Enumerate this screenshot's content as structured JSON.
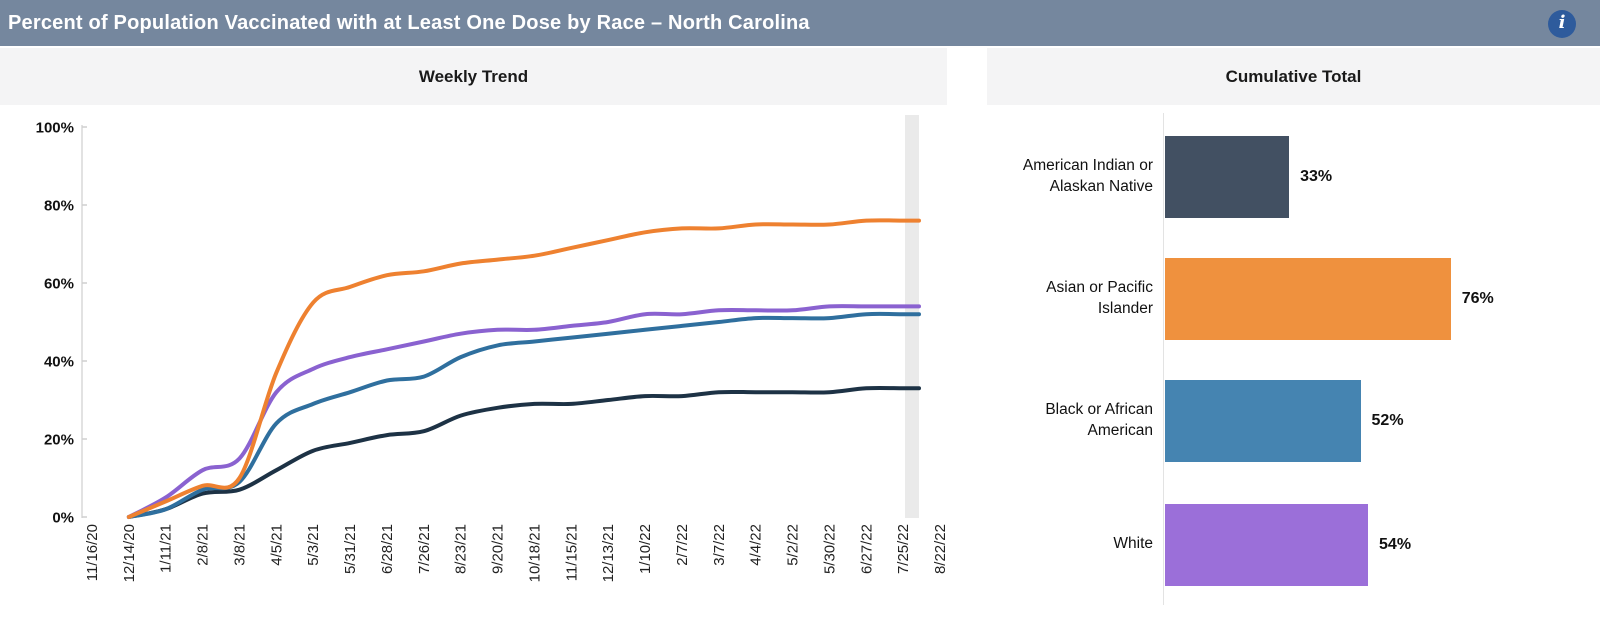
{
  "header": {
    "title": "Percent of Population Vaccinated with at Least One Dose by Race – North Carolina",
    "info_icon": "i"
  },
  "colors": {
    "header_bg": "#75879E",
    "info_icon_bg": "#2E5B9C",
    "panel_header_bg": "#F4F4F5",
    "highlight_band": "#EAEAEA",
    "axis_line": "#D8D8D8"
  },
  "panels": {
    "weekly_trend": {
      "title": "Weekly Trend"
    },
    "cumulative_total": {
      "title": "Cumulative Total"
    }
  },
  "chart_data": [
    {
      "type": "line",
      "title": "Weekly Trend",
      "x": [
        "11/16/20",
        "12/14/20",
        "1/11/21",
        "2/8/21",
        "3/8/21",
        "4/5/21",
        "5/3/21",
        "5/31/21",
        "6/28/21",
        "7/26/21",
        "8/23/21",
        "9/20/21",
        "10/18/21",
        "11/15/21",
        "12/13/21",
        "1/10/22",
        "2/7/22",
        "3/7/22",
        "4/4/22",
        "5/2/22",
        "5/30/22",
        "6/27/22",
        "7/25/22",
        "8/22/22"
      ],
      "y_ticks": [
        "0%",
        "20%",
        "40%",
        "60%",
        "80%",
        "100%"
      ],
      "ylim": [
        0,
        100
      ],
      "grid": false,
      "legend": "none",
      "highlight_band_on_latest_week": true,
      "series": [
        {
          "name": "American Indian or Alaskan Native",
          "color": "#1D3245",
          "values": [
            null,
            0,
            2,
            6,
            7,
            12,
            17,
            19,
            21,
            22,
            26,
            28,
            29,
            29,
            30,
            31,
            31,
            32,
            32,
            32,
            32,
            33,
            33,
            null
          ]
        },
        {
          "name": "Black or African American",
          "color": "#2F6F9E",
          "values": [
            null,
            0,
            2,
            7,
            9,
            24,
            29,
            32,
            35,
            36,
            41,
            44,
            45,
            46,
            47,
            48,
            49,
            50,
            51,
            51,
            51,
            52,
            52,
            null
          ]
        },
        {
          "name": "White",
          "color": "#8A62D0",
          "values": [
            null,
            0,
            5,
            12,
            15,
            32,
            38,
            41,
            43,
            45,
            47,
            48,
            48,
            49,
            50,
            52,
            52,
            53,
            53,
            53,
            54,
            54,
            54,
            null
          ]
        },
        {
          "name": "Asian or Pacific Islander",
          "color": "#EE8130",
          "values": [
            null,
            0,
            4,
            8,
            10,
            37,
            55,
            59,
            62,
            63,
            65,
            66,
            67,
            69,
            71,
            73,
            74,
            74,
            75,
            75,
            75,
            76,
            76,
            null
          ]
        }
      ]
    },
    {
      "type": "bar",
      "title": "Cumulative Total",
      "orientation": "horizontal",
      "categories": [
        [
          "American Indian or",
          "Alaskan Native"
        ],
        [
          "Asian or Pacific",
          "Islander"
        ],
        [
          "Black or African",
          "American"
        ],
        [
          "White"
        ]
      ],
      "values": [
        33,
        76,
        52,
        54
      ],
      "labels": [
        "33%",
        "76%",
        "52%",
        "54%"
      ],
      "colors": [
        "#425062",
        "#EF913E",
        "#4584B1",
        "#9B6FD9"
      ],
      "xlim": [
        0,
        100
      ]
    }
  ]
}
